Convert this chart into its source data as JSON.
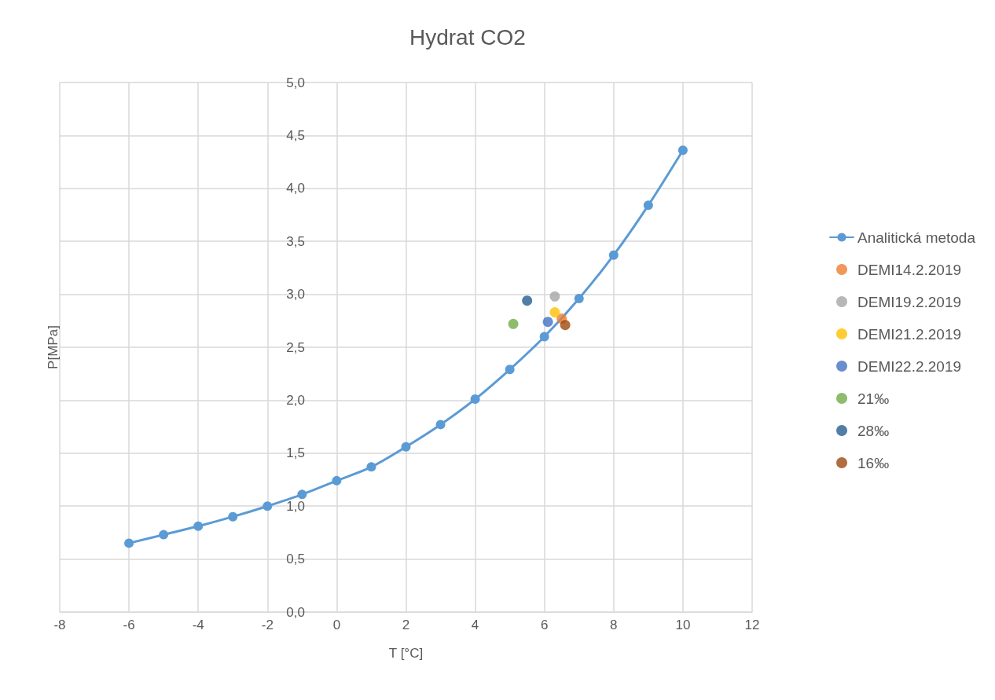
{
  "chart_data": {
    "type": "line",
    "title": "Hydrat CO2",
    "xlabel": "T [°C]",
    "ylabel": "P[MPa]",
    "xlim": [
      -8,
      12
    ],
    "xticks": [
      -8,
      -6,
      -4,
      -2,
      0,
      2,
      4,
      6,
      8,
      10,
      12
    ],
    "ylim": [
      0,
      5
    ],
    "yticks": [
      {
        "value": 0,
        "label": "0,0"
      },
      {
        "value": 0.5,
        "label": "0,5"
      },
      {
        "value": 1,
        "label": "1,0"
      },
      {
        "value": 1.5,
        "label": "1,5"
      },
      {
        "value": 2,
        "label": "2,0"
      },
      {
        "value": 2.5,
        "label": "2,5"
      },
      {
        "value": 3,
        "label": "3,0"
      },
      {
        "value": 3.5,
        "label": "3,5"
      },
      {
        "value": 4,
        "label": "4,0"
      },
      {
        "value": 4.5,
        "label": "4,5"
      },
      {
        "value": 5,
        "label": "5,0"
      }
    ],
    "grid": true,
    "legend": "right",
    "marker": "circle",
    "line_style": "solid",
    "series": [
      {
        "name": "Analitická metoda",
        "color": "#5b9bd5",
        "x": [
          -6,
          -5,
          -4,
          -3,
          -2,
          -1,
          0,
          1,
          2,
          3,
          4,
          5,
          6,
          7,
          8,
          9,
          10
        ],
        "values": [
          0.65,
          0.73,
          0.81,
          0.9,
          1.0,
          1.11,
          1.24,
          1.37,
          1.56,
          1.77,
          2.01,
          2.29,
          2.6,
          2.96,
          3.37,
          3.84,
          4.36
        ]
      },
      {
        "name": "DEMI14.2.2019",
        "type": "scatter",
        "color": "#ed7d31",
        "x": [
          6.5
        ],
        "values": [
          2.77
        ]
      },
      {
        "name": "DEMI19.2.2019",
        "type": "scatter",
        "color": "#a5a5a5",
        "x": [
          6.3
        ],
        "values": [
          2.98
        ]
      },
      {
        "name": "DEMI21.2.2019",
        "type": "scatter",
        "color": "#ffc000",
        "x": [
          6.3
        ],
        "values": [
          2.83
        ]
      },
      {
        "name": "DEMI22.2.2019",
        "type": "scatter",
        "color": "#4472c4",
        "x": [
          6.1
        ],
        "values": [
          2.74
        ]
      },
      {
        "name": "21‰",
        "type": "scatter",
        "color": "#70ad47",
        "x": [
          5.1
        ],
        "values": [
          2.72
        ]
      },
      {
        "name": "28‰",
        "type": "scatter",
        "color": "#255e91",
        "x": [
          5.5
        ],
        "values": [
          2.94
        ]
      },
      {
        "name": "16‰",
        "type": "scatter",
        "color": "#9e480e",
        "x": [
          6.6
        ],
        "values": [
          2.71
        ]
      }
    ]
  }
}
